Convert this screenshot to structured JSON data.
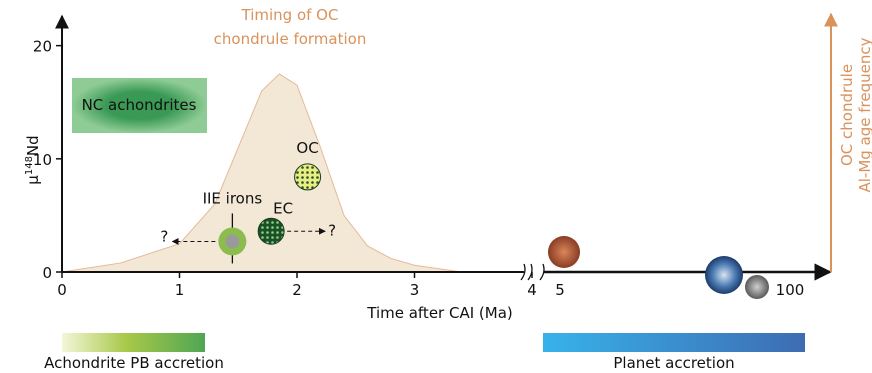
{
  "chart_data": {
    "type": "scatter",
    "title_lines": [
      "Timing of OC",
      "chondrule formation"
    ],
    "x_label": "Time after CAI (Ma)",
    "y_label": {
      "symbol": "μ",
      "superscript": "148",
      "element": "Nd"
    },
    "right_axis_label": [
      "OC chondrule",
      "Al-Mg age frequency"
    ],
    "xlim": [
      0,
      4
    ],
    "xticks": [
      0,
      1,
      2,
      3,
      4
    ],
    "ylim": [
      0,
      22
    ],
    "yticks": [
      0,
      10,
      20
    ],
    "break_ticks": [
      "5",
      "100"
    ],
    "curve": {
      "color": "#f3e7d6",
      "x": [
        0,
        0.5,
        1,
        1.3,
        1.5,
        1.7,
        1.85,
        2.0,
        2.2,
        2.4,
        2.6,
        2.8,
        3.0,
        3.4
      ],
      "y": [
        0,
        0.8,
        2.5,
        6,
        11,
        16,
        17.5,
        16.5,
        11,
        5,
        2.3,
        1.2,
        0.6,
        0
      ]
    },
    "points": [
      {
        "label": "IIE irons",
        "x": 1.45,
        "y": 2.7
      },
      {
        "label": "EC",
        "x": 1.78,
        "y": 3.6
      },
      {
        "label": "OC",
        "x": 2.09,
        "y": 8.4
      }
    ],
    "question_marks": [
      "?",
      "?"
    ],
    "box_label": "NC achondrites",
    "bars": [
      "Achondrite PB accretion",
      "Planet accretion"
    ]
  }
}
